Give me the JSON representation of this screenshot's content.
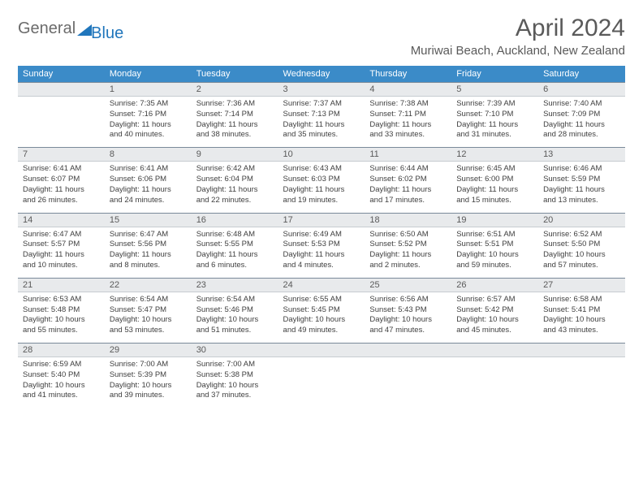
{
  "logo": {
    "text1": "General",
    "text2": "Blue"
  },
  "title": "April 2024",
  "location": "Muriwai Beach, Auckland, New Zealand",
  "header_color": "#3b8bc8",
  "daynum_bg": "#e8eaec",
  "daynum_border_top": "#7a8a9a",
  "weekdays": [
    "Sunday",
    "Monday",
    "Tuesday",
    "Wednesday",
    "Thursday",
    "Friday",
    "Saturday"
  ],
  "weeks": [
    {
      "nums": [
        "",
        "1",
        "2",
        "3",
        "4",
        "5",
        "6"
      ],
      "cells": [
        {
          "sr": "",
          "ss": "",
          "dl1": "",
          "dl2": ""
        },
        {
          "sr": "Sunrise: 7:35 AM",
          "ss": "Sunset: 7:16 PM",
          "dl1": "Daylight: 11 hours",
          "dl2": "and 40 minutes."
        },
        {
          "sr": "Sunrise: 7:36 AM",
          "ss": "Sunset: 7:14 PM",
          "dl1": "Daylight: 11 hours",
          "dl2": "and 38 minutes."
        },
        {
          "sr": "Sunrise: 7:37 AM",
          "ss": "Sunset: 7:13 PM",
          "dl1": "Daylight: 11 hours",
          "dl2": "and 35 minutes."
        },
        {
          "sr": "Sunrise: 7:38 AM",
          "ss": "Sunset: 7:11 PM",
          "dl1": "Daylight: 11 hours",
          "dl2": "and 33 minutes."
        },
        {
          "sr": "Sunrise: 7:39 AM",
          "ss": "Sunset: 7:10 PM",
          "dl1": "Daylight: 11 hours",
          "dl2": "and 31 minutes."
        },
        {
          "sr": "Sunrise: 7:40 AM",
          "ss": "Sunset: 7:09 PM",
          "dl1": "Daylight: 11 hours",
          "dl2": "and 28 minutes."
        }
      ]
    },
    {
      "nums": [
        "7",
        "8",
        "9",
        "10",
        "11",
        "12",
        "13"
      ],
      "cells": [
        {
          "sr": "Sunrise: 6:41 AM",
          "ss": "Sunset: 6:07 PM",
          "dl1": "Daylight: 11 hours",
          "dl2": "and 26 minutes."
        },
        {
          "sr": "Sunrise: 6:41 AM",
          "ss": "Sunset: 6:06 PM",
          "dl1": "Daylight: 11 hours",
          "dl2": "and 24 minutes."
        },
        {
          "sr": "Sunrise: 6:42 AM",
          "ss": "Sunset: 6:04 PM",
          "dl1": "Daylight: 11 hours",
          "dl2": "and 22 minutes."
        },
        {
          "sr": "Sunrise: 6:43 AM",
          "ss": "Sunset: 6:03 PM",
          "dl1": "Daylight: 11 hours",
          "dl2": "and 19 minutes."
        },
        {
          "sr": "Sunrise: 6:44 AM",
          "ss": "Sunset: 6:02 PM",
          "dl1": "Daylight: 11 hours",
          "dl2": "and 17 minutes."
        },
        {
          "sr": "Sunrise: 6:45 AM",
          "ss": "Sunset: 6:00 PM",
          "dl1": "Daylight: 11 hours",
          "dl2": "and 15 minutes."
        },
        {
          "sr": "Sunrise: 6:46 AM",
          "ss": "Sunset: 5:59 PM",
          "dl1": "Daylight: 11 hours",
          "dl2": "and 13 minutes."
        }
      ]
    },
    {
      "nums": [
        "14",
        "15",
        "16",
        "17",
        "18",
        "19",
        "20"
      ],
      "cells": [
        {
          "sr": "Sunrise: 6:47 AM",
          "ss": "Sunset: 5:57 PM",
          "dl1": "Daylight: 11 hours",
          "dl2": "and 10 minutes."
        },
        {
          "sr": "Sunrise: 6:47 AM",
          "ss": "Sunset: 5:56 PM",
          "dl1": "Daylight: 11 hours",
          "dl2": "and 8 minutes."
        },
        {
          "sr": "Sunrise: 6:48 AM",
          "ss": "Sunset: 5:55 PM",
          "dl1": "Daylight: 11 hours",
          "dl2": "and 6 minutes."
        },
        {
          "sr": "Sunrise: 6:49 AM",
          "ss": "Sunset: 5:53 PM",
          "dl1": "Daylight: 11 hours",
          "dl2": "and 4 minutes."
        },
        {
          "sr": "Sunrise: 6:50 AM",
          "ss": "Sunset: 5:52 PM",
          "dl1": "Daylight: 11 hours",
          "dl2": "and 2 minutes."
        },
        {
          "sr": "Sunrise: 6:51 AM",
          "ss": "Sunset: 5:51 PM",
          "dl1": "Daylight: 10 hours",
          "dl2": "and 59 minutes."
        },
        {
          "sr": "Sunrise: 6:52 AM",
          "ss": "Sunset: 5:50 PM",
          "dl1": "Daylight: 10 hours",
          "dl2": "and 57 minutes."
        }
      ]
    },
    {
      "nums": [
        "21",
        "22",
        "23",
        "24",
        "25",
        "26",
        "27"
      ],
      "cells": [
        {
          "sr": "Sunrise: 6:53 AM",
          "ss": "Sunset: 5:48 PM",
          "dl1": "Daylight: 10 hours",
          "dl2": "and 55 minutes."
        },
        {
          "sr": "Sunrise: 6:54 AM",
          "ss": "Sunset: 5:47 PM",
          "dl1": "Daylight: 10 hours",
          "dl2": "and 53 minutes."
        },
        {
          "sr": "Sunrise: 6:54 AM",
          "ss": "Sunset: 5:46 PM",
          "dl1": "Daylight: 10 hours",
          "dl2": "and 51 minutes."
        },
        {
          "sr": "Sunrise: 6:55 AM",
          "ss": "Sunset: 5:45 PM",
          "dl1": "Daylight: 10 hours",
          "dl2": "and 49 minutes."
        },
        {
          "sr": "Sunrise: 6:56 AM",
          "ss": "Sunset: 5:43 PM",
          "dl1": "Daylight: 10 hours",
          "dl2": "and 47 minutes."
        },
        {
          "sr": "Sunrise: 6:57 AM",
          "ss": "Sunset: 5:42 PM",
          "dl1": "Daylight: 10 hours",
          "dl2": "and 45 minutes."
        },
        {
          "sr": "Sunrise: 6:58 AM",
          "ss": "Sunset: 5:41 PM",
          "dl1": "Daylight: 10 hours",
          "dl2": "and 43 minutes."
        }
      ]
    },
    {
      "nums": [
        "28",
        "29",
        "30",
        "",
        "",
        "",
        ""
      ],
      "cells": [
        {
          "sr": "Sunrise: 6:59 AM",
          "ss": "Sunset: 5:40 PM",
          "dl1": "Daylight: 10 hours",
          "dl2": "and 41 minutes."
        },
        {
          "sr": "Sunrise: 7:00 AM",
          "ss": "Sunset: 5:39 PM",
          "dl1": "Daylight: 10 hours",
          "dl2": "and 39 minutes."
        },
        {
          "sr": "Sunrise: 7:00 AM",
          "ss": "Sunset: 5:38 PM",
          "dl1": "Daylight: 10 hours",
          "dl2": "and 37 minutes."
        },
        {
          "sr": "",
          "ss": "",
          "dl1": "",
          "dl2": ""
        },
        {
          "sr": "",
          "ss": "",
          "dl1": "",
          "dl2": ""
        },
        {
          "sr": "",
          "ss": "",
          "dl1": "",
          "dl2": ""
        },
        {
          "sr": "",
          "ss": "",
          "dl1": "",
          "dl2": ""
        }
      ]
    }
  ]
}
